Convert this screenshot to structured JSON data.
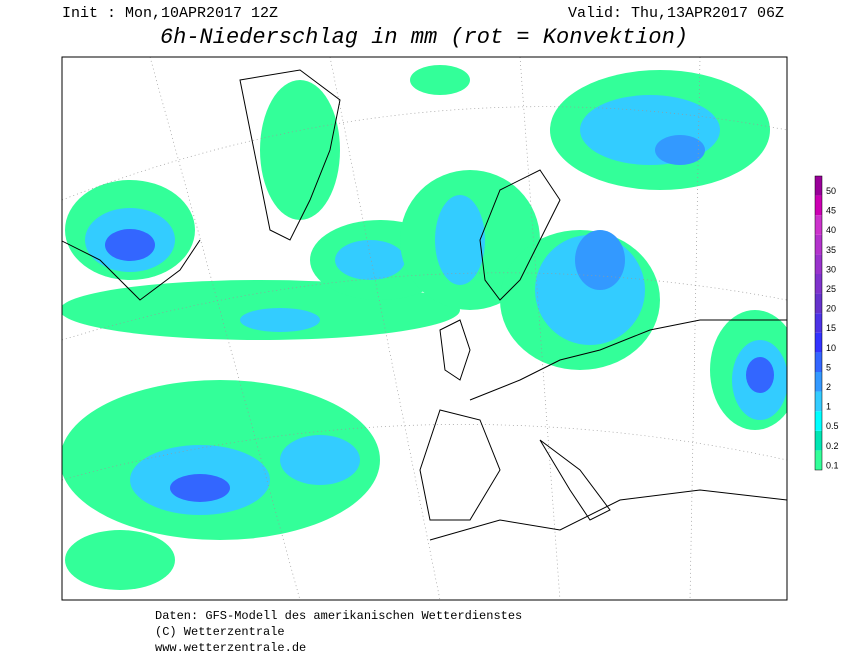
{
  "header": {
    "init": "Init : Mon,10APR2017 12Z",
    "valid": "Valid: Thu,13APR2017 06Z",
    "title": "6h-Niederschlag in mm (rot = Konvektion)"
  },
  "legend": {
    "items": [
      {
        "label": 0.1,
        "color": "#33ff99"
      },
      {
        "label": 0.2,
        "color": "#00e6b3"
      },
      {
        "label": 0.5,
        "color": "#00ffff"
      },
      {
        "label": 1,
        "color": "#33ccff"
      },
      {
        "label": 2,
        "color": "#3399ff"
      },
      {
        "label": 5,
        "color": "#3366ff"
      },
      {
        "label": 10,
        "color": "#3333ff"
      },
      {
        "label": 15,
        "color": "#4d33e6"
      },
      {
        "label": 20,
        "color": "#6633cc"
      },
      {
        "label": 25,
        "color": "#7f33cc"
      },
      {
        "label": 30,
        "color": "#9933cc"
      },
      {
        "label": 35,
        "color": "#b333cc"
      },
      {
        "label": 40,
        "color": "#cc33cc"
      },
      {
        "label": 45,
        "color": "#cc00b3"
      },
      {
        "label": 50,
        "color": "#990099"
      }
    ]
  },
  "footer": {
    "lines": [
      "Daten: GFS-Modell des amerikanischen Wetterdienstes",
      "(C) Wetterzentrale",
      "www.wetterzentrale.de"
    ]
  }
}
